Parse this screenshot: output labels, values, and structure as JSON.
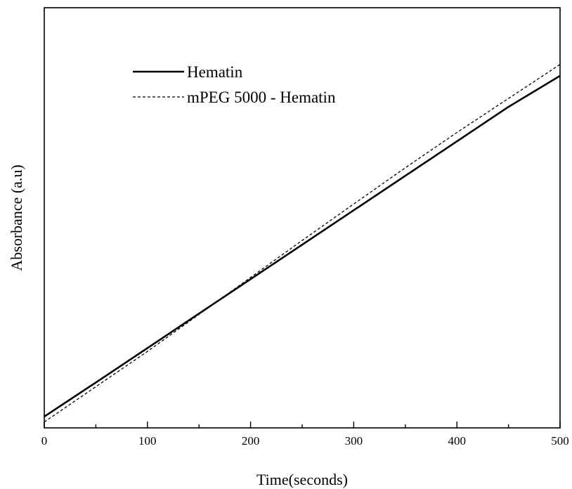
{
  "chart_data": {
    "type": "line",
    "title": "",
    "xlabel": "Time(seconds)",
    "ylabel": "Absorbance (a.u)",
    "xlim": [
      0,
      500
    ],
    "ylim": [
      0,
      1
    ],
    "x_ticks": [
      0,
      100,
      200,
      300,
      400,
      500
    ],
    "x_tick_labels": [
      "0",
      "100",
      "200",
      "300",
      "400",
      "500"
    ],
    "y_tick_labels_shown": false,
    "grid": false,
    "legend_position": "top-left",
    "series": [
      {
        "name": "Hematin",
        "style": "solid",
        "color": "#000000",
        "x": [
          0,
          50,
          100,
          150,
          200,
          250,
          300,
          350,
          400,
          450,
          500
        ],
        "y": [
          0.027,
          0.108,
          0.19,
          0.272,
          0.354,
          0.436,
          0.518,
          0.6,
          0.682,
          0.764,
          0.838
        ]
      },
      {
        "name": "mPEG 5000 - Hematin",
        "style": "dashed",
        "color": "#000000",
        "x": [
          0,
          50,
          100,
          150,
          200,
          250,
          300,
          350,
          400,
          450,
          500
        ],
        "y": [
          0.014,
          0.098,
          0.182,
          0.27,
          0.358,
          0.446,
          0.533,
          0.619,
          0.703,
          0.784,
          0.865
        ]
      }
    ]
  }
}
